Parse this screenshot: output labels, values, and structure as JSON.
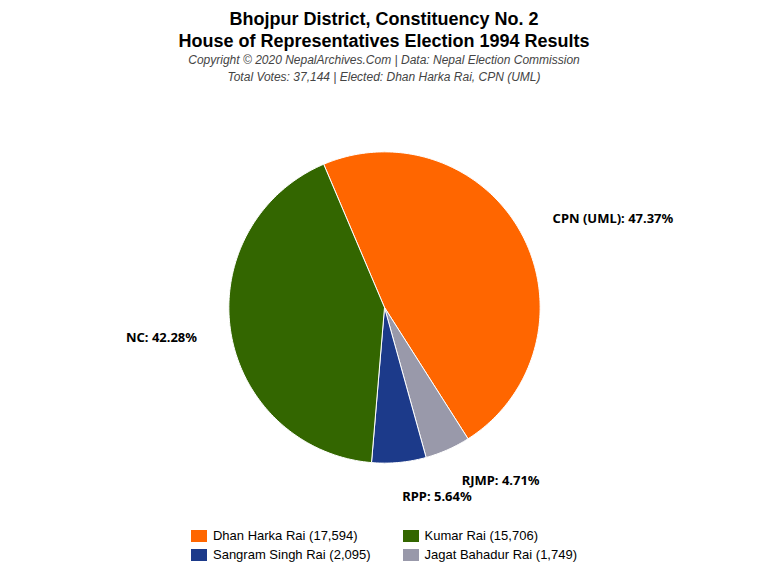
{
  "chart_data": {
    "type": "pie",
    "title": "Bhojpur District, Constituency No. 2",
    "subtitle": "House of Representatives Election 1994 Results",
    "annotations": [
      "Copyright © 2020 NepalArchives.Com | Data: Nepal Election Commission",
      "Total Votes: 37,144 | Elected: Dhan Harka Rai, CPN (UML)"
    ],
    "categories": [
      "CPN (UML)",
      "RJMP",
      "RPP",
      "NC"
    ],
    "values": [
      47.37,
      4.71,
      5.64,
      42.28
    ],
    "value_labels": [
      "CPN (UML): 47.37%",
      "RJMP: 4.71%",
      "RPP: 5.64%",
      "NC: 42.28%"
    ],
    "colors": [
      "#FF6600",
      "#9999AA",
      "#1C3A8A",
      "#336600"
    ],
    "data_labels": true,
    "legend": "bottom",
    "legend_entries": [
      {
        "label": "Dhan Harka Rai (17,594)",
        "color": "#FF6600"
      },
      {
        "label": "Kumar Rai (15,706)",
        "color": "#336600"
      },
      {
        "label": "Sangram Singh Rai (2,095)",
        "color": "#1C3A8A"
      },
      {
        "label": "Jagat Bahadur Rai (1,749)",
        "color": "#9999AA"
      }
    ]
  }
}
